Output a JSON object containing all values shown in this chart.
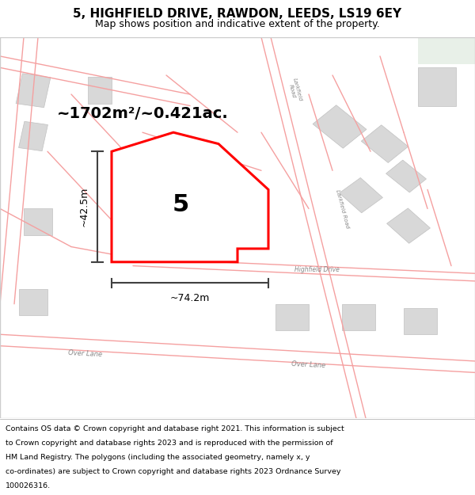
{
  "title_line1": "5, HIGHFIELD DRIVE, RAWDON, LEEDS, LS19 6EY",
  "title_line2": "Map shows position and indicative extent of the property.",
  "area_label": "~1702m²/~0.421ac.",
  "number_label": "5",
  "dim_horizontal": "~74.2m",
  "dim_vertical": "~42.5m",
  "map_bg": "#ffffff",
  "road_color_light": "#f5a0a0",
  "building_fill": "#d8d8d8",
  "building_stroke": "#c0c0c0",
  "property_stroke": "#ff0000",
  "dim_line_color": "#404040",
  "footer_lines": [
    "Contains OS data © Crown copyright and database right 2021. This information is subject",
    "to Crown copyright and database rights 2023 and is reproduced with the permission of",
    "HM Land Registry. The polygons (including the associated geometry, namely x, y",
    "co-ordinates) are subject to Crown copyright and database rights 2023 Ordnance Survey",
    "100026316."
  ]
}
